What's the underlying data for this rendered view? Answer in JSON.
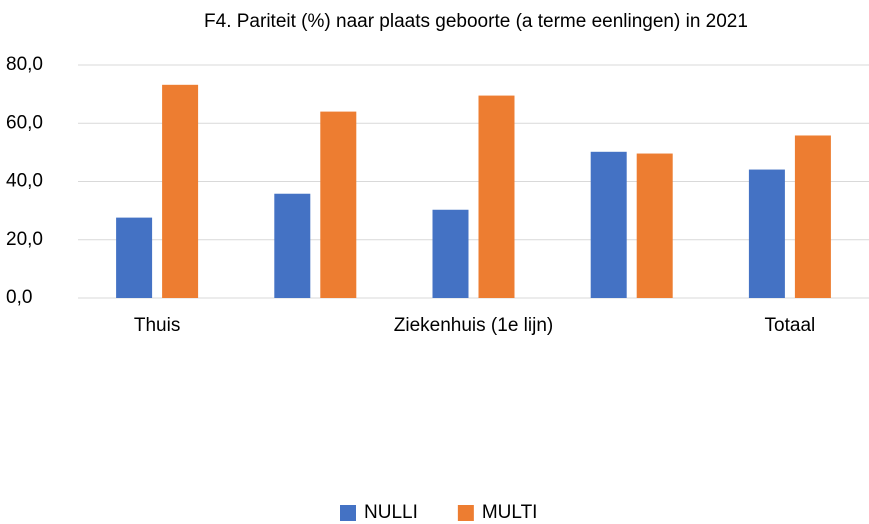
{
  "chart_data": {
    "type": "bar",
    "title": "F4. Pariteit (%) naar plaats geboorte (a terme eenlingen) in 2021",
    "categories": [
      "Thuis",
      null,
      "Ziekenhuis (1e lijn)",
      null,
      "Totaal"
    ],
    "series": [
      {
        "name": "NULLI",
        "color": "#4472c4",
        "values": [
          27.6,
          35.8,
          30.3,
          50.2,
          44.1
        ]
      },
      {
        "name": "MULTI",
        "color": "#ed7d31",
        "values": [
          73.2,
          64.0,
          69.5,
          49.6,
          55.8
        ]
      }
    ],
    "ylim": [
      0,
      80
    ],
    "yticks": [
      {
        "value": 0,
        "label": "0,0"
      },
      {
        "value": 20,
        "label": "20,0"
      },
      {
        "value": 40,
        "label": "40,0"
      },
      {
        "value": 60,
        "label": "60,0"
      },
      {
        "value": 80,
        "label": "80,0"
      }
    ],
    "grid": true,
    "legend": "bottom"
  }
}
